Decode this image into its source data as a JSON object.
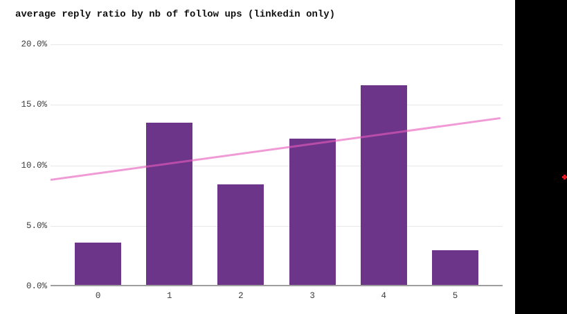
{
  "title": "average reply ratio by nb of follow ups (linkedin only)",
  "colors": {
    "background": "#ffffff",
    "bar": "#6d358a",
    "trendline": "#e75cbd",
    "gridline": "#e8e8e8",
    "axis_line": "#9e9e9e",
    "label_text": "#3c3c3c",
    "title_text": "#0f0f0f",
    "side_panel": "#000000",
    "marker": "#e01b24"
  },
  "chart_data": {
    "type": "bar",
    "title": "average reply ratio by nb of follow ups (linkedin only)",
    "categories": [
      "0",
      "1",
      "2",
      "3",
      "4",
      "5"
    ],
    "series": [
      {
        "name": "average reply ratio",
        "type": "bar",
        "values": [
          3.6,
          13.5,
          8.4,
          12.2,
          16.6,
          3.0
        ]
      }
    ],
    "trendline": {
      "type": "linear",
      "start_value": 8.8,
      "end_value": 13.9
    },
    "xlabel": "",
    "ylabel": "",
    "ylim": [
      0,
      20
    ],
    "y_ticks": [
      {
        "value": 20,
        "label": "20.0%"
      },
      {
        "value": 15,
        "label": "15.0%"
      },
      {
        "value": 10,
        "label": "10.0%"
      },
      {
        "value": 5,
        "label": "5.0%"
      },
      {
        "value": 0,
        "label": "0.0%"
      }
    ],
    "grid": true,
    "legend": "none",
    "value_format": "percent"
  },
  "side_panel": {
    "marker_icon": "red-cross"
  }
}
